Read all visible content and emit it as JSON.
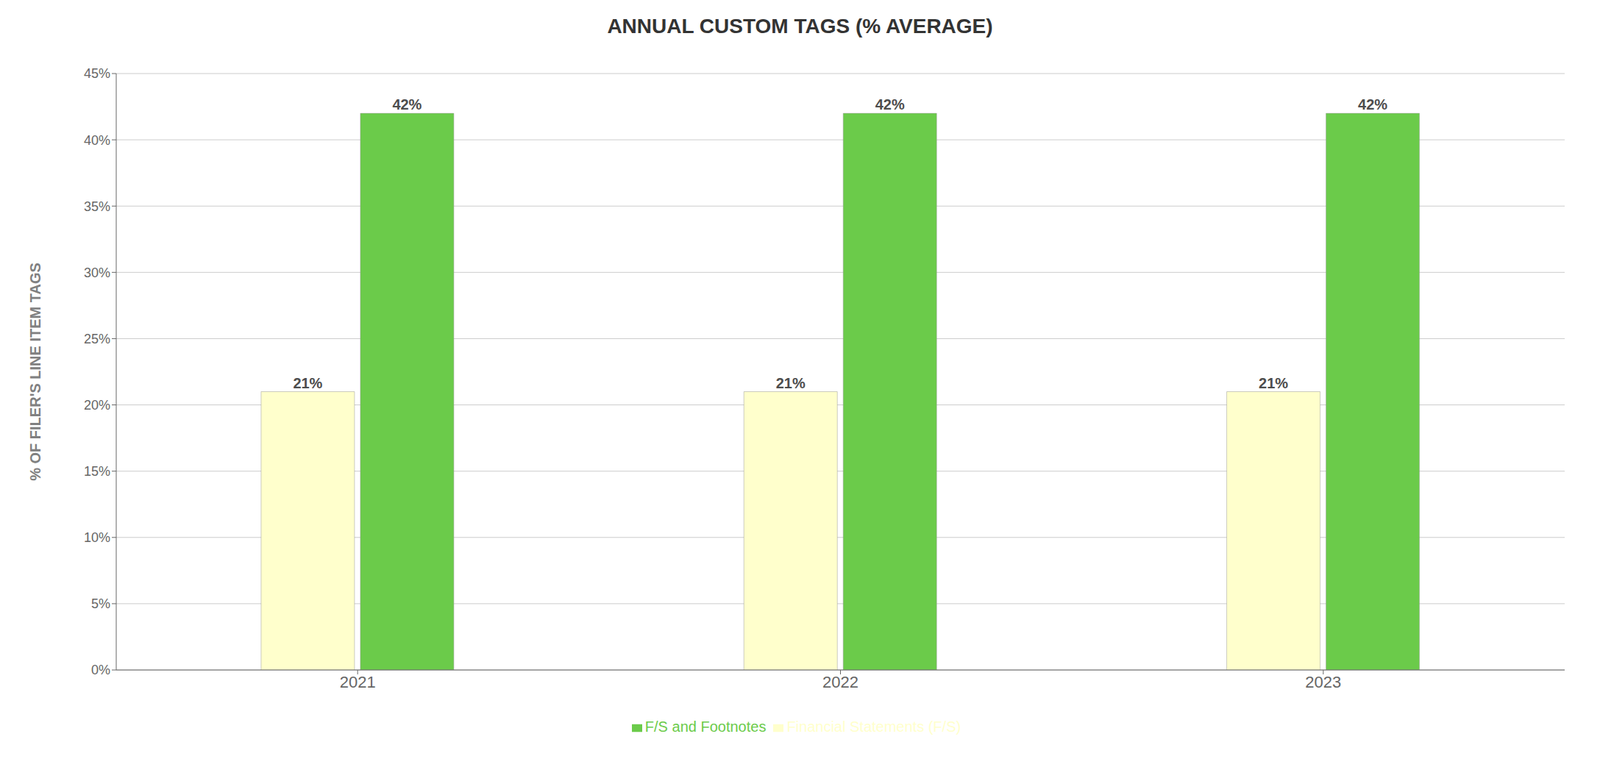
{
  "chart_data": {
    "type": "bar",
    "title": "ANNUAL CUSTOM TAGS (% AVERAGE)",
    "ylabel": "% OF FILER'S LINE ITEM TAGS",
    "categories": [
      "2021",
      "2022",
      "2023"
    ],
    "series": [
      {
        "name": "Financial Statements (F/S)",
        "color": "#FFFFCC",
        "values": [
          21,
          21,
          21
        ],
        "value_labels": [
          "21%",
          "21%",
          "21%"
        ]
      },
      {
        "name": "F/S and Footnotes",
        "color": "#6BCB4A",
        "values": [
          42,
          42,
          42
        ],
        "value_labels": [
          "42%",
          "42%",
          "42%"
        ]
      }
    ],
    "ylim": [
      0,
      45
    ],
    "yticks": [
      {
        "value": 0,
        "label": "0%"
      },
      {
        "value": 5,
        "label": "5%"
      },
      {
        "value": 10,
        "label": "10%"
      },
      {
        "value": 15,
        "label": "15%"
      },
      {
        "value": 20,
        "label": "20%"
      },
      {
        "value": 25,
        "label": "25%"
      },
      {
        "value": 30,
        "label": "30%"
      },
      {
        "value": 35,
        "label": "35%"
      },
      {
        "value": 40,
        "label": "40%"
      },
      {
        "value": 45,
        "label": "45%"
      }
    ],
    "grid": true,
    "legend": "bottom",
    "data_labels": true
  }
}
